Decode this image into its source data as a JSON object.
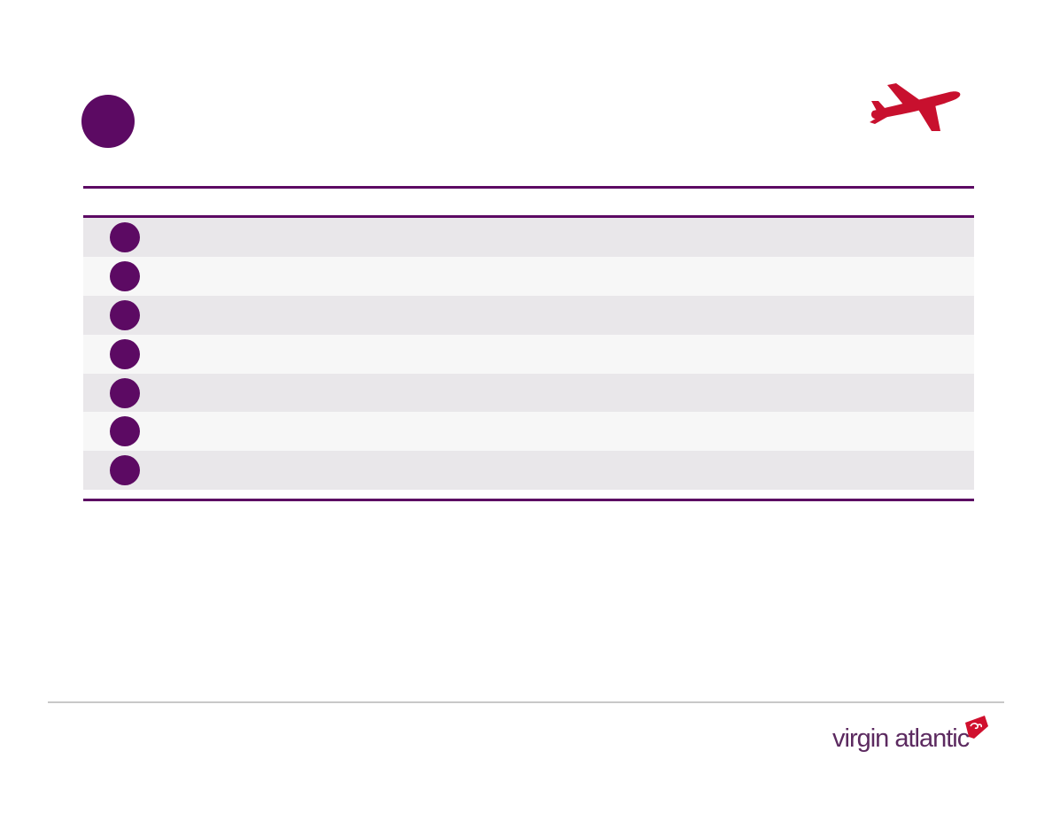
{
  "slide": {
    "title_dot_icon": "purple-circle-bullet",
    "plane_icon": "airplane-icon",
    "plane_color": "#c8102e",
    "accent_color": "#5c0a63"
  },
  "table": {
    "header_label": "",
    "rows": [
      {
        "icon": "purple-circle-bullet",
        "text": ""
      },
      {
        "icon": "purple-circle-bullet",
        "text": ""
      },
      {
        "icon": "purple-circle-bullet",
        "text": ""
      },
      {
        "icon": "purple-circle-bullet",
        "text": ""
      },
      {
        "icon": "purple-circle-bullet",
        "text": ""
      },
      {
        "icon": "purple-circle-bullet",
        "text": ""
      },
      {
        "icon": "purple-circle-bullet",
        "text": ""
      }
    ]
  },
  "footer": {
    "logo_text": "virgin atlantic",
    "logo_mark_icon": "virgin-signature-tail-logo"
  }
}
